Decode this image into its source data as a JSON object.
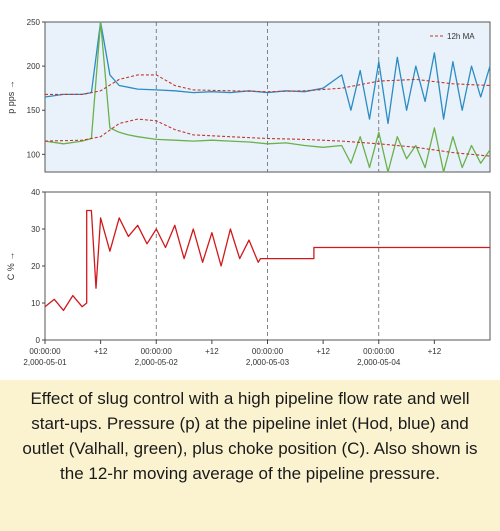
{
  "chart_data": [
    {
      "type": "line",
      "ylabel": "p pps →",
      "ylim": [
        80,
        250
      ],
      "yticks": [
        "250",
        "200",
        "150",
        "100"
      ],
      "ytick_values": [
        250,
        200,
        150,
        100
      ],
      "grid": "vertical dashed lines at 00:00",
      "legend": {
        "position": "top-right",
        "entries": [
          {
            "name": "12h MA",
            "color": "#c0392b",
            "style": "dashed"
          }
        ]
      },
      "x_range_hours": [
        0,
        96
      ],
      "series": [
        {
          "name": "Hod",
          "color": "#2b8cc4",
          "x_hours": [
            0,
            4,
            8,
            10,
            12,
            14,
            16,
            18,
            20,
            24,
            28,
            32,
            36,
            40,
            44,
            48,
            52,
            56,
            60,
            64,
            66,
            68,
            70,
            72,
            74,
            76,
            78,
            80,
            82,
            84,
            86,
            88,
            90,
            92,
            94,
            96
          ],
          "values": [
            165,
            168,
            168,
            170,
            250,
            190,
            178,
            176,
            174,
            173,
            172,
            170,
            171,
            170,
            172,
            170,
            172,
            171,
            175,
            190,
            150,
            195,
            140,
            205,
            135,
            210,
            150,
            200,
            160,
            215,
            140,
            205,
            150,
            200,
            165,
            200
          ]
        },
        {
          "name": "Valhall",
          "color": "#6ab04c",
          "x_hours": [
            0,
            4,
            8,
            10,
            12,
            14,
            16,
            18,
            20,
            24,
            28,
            32,
            36,
            40,
            44,
            48,
            52,
            56,
            60,
            64,
            66,
            68,
            70,
            72,
            74,
            76,
            78,
            80,
            82,
            84,
            86,
            88,
            90,
            92,
            94,
            96
          ],
          "values": [
            115,
            112,
            115,
            118,
            250,
            130,
            125,
            122,
            120,
            117,
            116,
            115,
            116,
            115,
            114,
            112,
            113,
            110,
            108,
            110,
            90,
            120,
            85,
            125,
            80,
            120,
            95,
            110,
            85,
            130,
            80,
            120,
            85,
            110,
            90,
            105
          ]
        },
        {
          "name": "12h MA",
          "color": "#c0392b",
          "style": "dashed",
          "x_hours": [
            0,
            8,
            12,
            16,
            20,
            24,
            28,
            32,
            40,
            48,
            56,
            64,
            72,
            80,
            88,
            96
          ],
          "values": [
            168,
            168,
            172,
            185,
            190,
            190,
            178,
            173,
            172,
            171,
            172,
            175,
            183,
            185,
            180,
            178
          ]
        },
        {
          "name": "12h MA (Valhall)",
          "color": "#c0392b",
          "style": "dashed",
          "x_hours": [
            0,
            8,
            12,
            16,
            20,
            24,
            28,
            32,
            40,
            48,
            56,
            64,
            72,
            80,
            88,
            96
          ],
          "values": [
            115,
            116,
            120,
            135,
            140,
            138,
            128,
            122,
            120,
            118,
            117,
            115,
            112,
            108,
            102,
            98
          ]
        }
      ]
    },
    {
      "type": "line",
      "ylabel": "C % →",
      "ylim": [
        0,
        40
      ],
      "yticks": [
        "40",
        "30",
        "20",
        "10",
        "0"
      ],
      "ytick_values": [
        40,
        30,
        20,
        10,
        0
      ],
      "grid": "vertical dashed lines at 00:00",
      "x_range_hours": [
        0,
        96
      ],
      "xticks": [
        {
          "hours": 0,
          "line1": "00:00:00",
          "line2": "2,000-05-01"
        },
        {
          "hours": 12,
          "line1": "+12",
          "line2": ""
        },
        {
          "hours": 24,
          "line1": "00:00:00",
          "line2": "2,000-05-02"
        },
        {
          "hours": 36,
          "line1": "+12",
          "line2": ""
        },
        {
          "hours": 48,
          "line1": "00:00:00",
          "line2": "2,000-05-03"
        },
        {
          "hours": 60,
          "line1": "+12",
          "line2": ""
        },
        {
          "hours": 72,
          "line1": "00:00:00",
          "line2": "2,000-05-04"
        },
        {
          "hours": 84,
          "line1": "+12",
          "line2": ""
        }
      ],
      "series": [
        {
          "name": "C",
          "color": "#d0191b",
          "x_hours": [
            0,
            2,
            4,
            6,
            8,
            9,
            9,
            10,
            11,
            12,
            14,
            16,
            18,
            20,
            22,
            24,
            26,
            28,
            30,
            32,
            34,
            36,
            38,
            40,
            42,
            44,
            46,
            46.5,
            58,
            58,
            96
          ],
          "values": [
            9,
            11,
            8,
            12,
            9,
            10,
            35,
            35,
            14,
            33,
            24,
            33,
            28,
            31,
            26,
            30,
            25,
            31,
            22,
            30,
            21,
            29,
            20,
            30,
            22,
            27,
            21,
            22,
            22,
            25,
            25
          ]
        }
      ]
    }
  ],
  "caption": "Effect of slug control with a high pipeline flow rate and well start-ups. Pressure (p) at the pipeline inlet (Hod, blue) and outlet (Valhall, green), plus choke position (C). Also shown is the 12-hr moving average of the pipeline pressure."
}
